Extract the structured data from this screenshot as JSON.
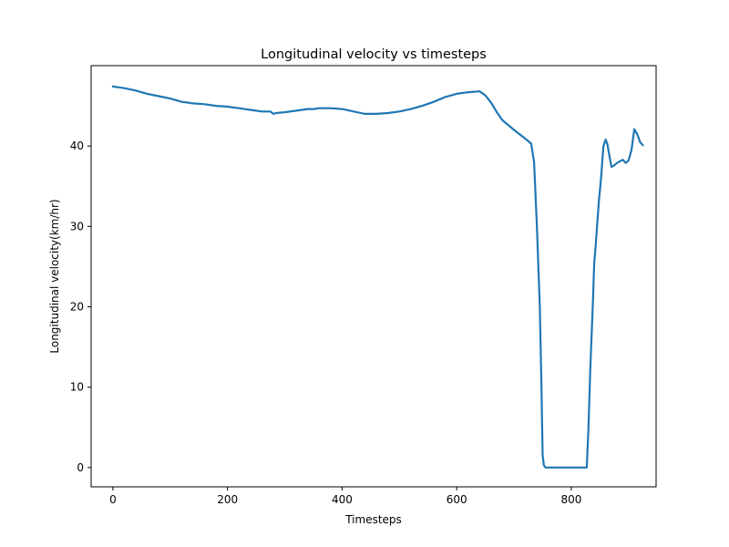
{
  "chart_data": {
    "type": "line",
    "title": "Longitudinal velocity vs timesteps",
    "xlabel": "Timesteps",
    "ylabel": "Longitudinal velocity(km/hr)",
    "xlim": [
      -38,
      948
    ],
    "ylim": [
      -2.4,
      50
    ],
    "xticks": [
      0,
      200,
      400,
      600,
      800
    ],
    "yticks": [
      0,
      10,
      20,
      30,
      40
    ],
    "grid": false,
    "color": "#1f77b4",
    "series": [
      {
        "x": [
          0,
          10,
          20,
          40,
          60,
          80,
          100,
          120,
          140,
          160,
          180,
          200,
          220,
          240,
          260,
          275,
          280,
          285,
          300,
          320,
          340,
          350,
          360,
          380,
          400,
          420,
          440,
          460,
          480,
          500,
          520,
          540,
          560,
          580,
          600,
          620,
          640,
          650,
          660,
          670,
          680,
          700,
          720,
          730,
          735,
          740,
          743,
          745,
          748,
          750,
          752,
          755,
          757,
          760,
          780,
          800,
          820,
          827,
          830,
          833,
          838,
          840,
          842,
          845,
          848,
          852,
          856,
          860,
          863,
          866,
          870,
          875,
          880,
          890,
          895,
          900,
          905,
          910,
          915,
          920,
          925
        ],
        "y": [
          47.4,
          47.3,
          47.2,
          46.9,
          46.5,
          46.2,
          45.9,
          45.5,
          45.3,
          45.2,
          45.0,
          44.9,
          44.7,
          44.5,
          44.3,
          44.3,
          44.0,
          44.1,
          44.2,
          44.4,
          44.6,
          44.6,
          44.7,
          44.7,
          44.6,
          44.3,
          44.0,
          44.0,
          44.1,
          44.3,
          44.6,
          45.0,
          45.5,
          46.1,
          46.5,
          46.7,
          46.8,
          46.3,
          45.4,
          44.2,
          43.2,
          42.0,
          40.9,
          40.3,
          38.0,
          30.0,
          24.0,
          20.0,
          10.0,
          1.5,
          0.3,
          0.0,
          0.0,
          0.0,
          0.0,
          0.0,
          0.0,
          0.0,
          5.0,
          12.0,
          21.0,
          25.5,
          27.0,
          30.0,
          33.0,
          36.0,
          40.0,
          40.8,
          40.2,
          39.0,
          37.4,
          37.6,
          37.9,
          38.3,
          37.9,
          38.2,
          39.5,
          42.1,
          41.5,
          40.5,
          40.1
        ]
      }
    ]
  }
}
